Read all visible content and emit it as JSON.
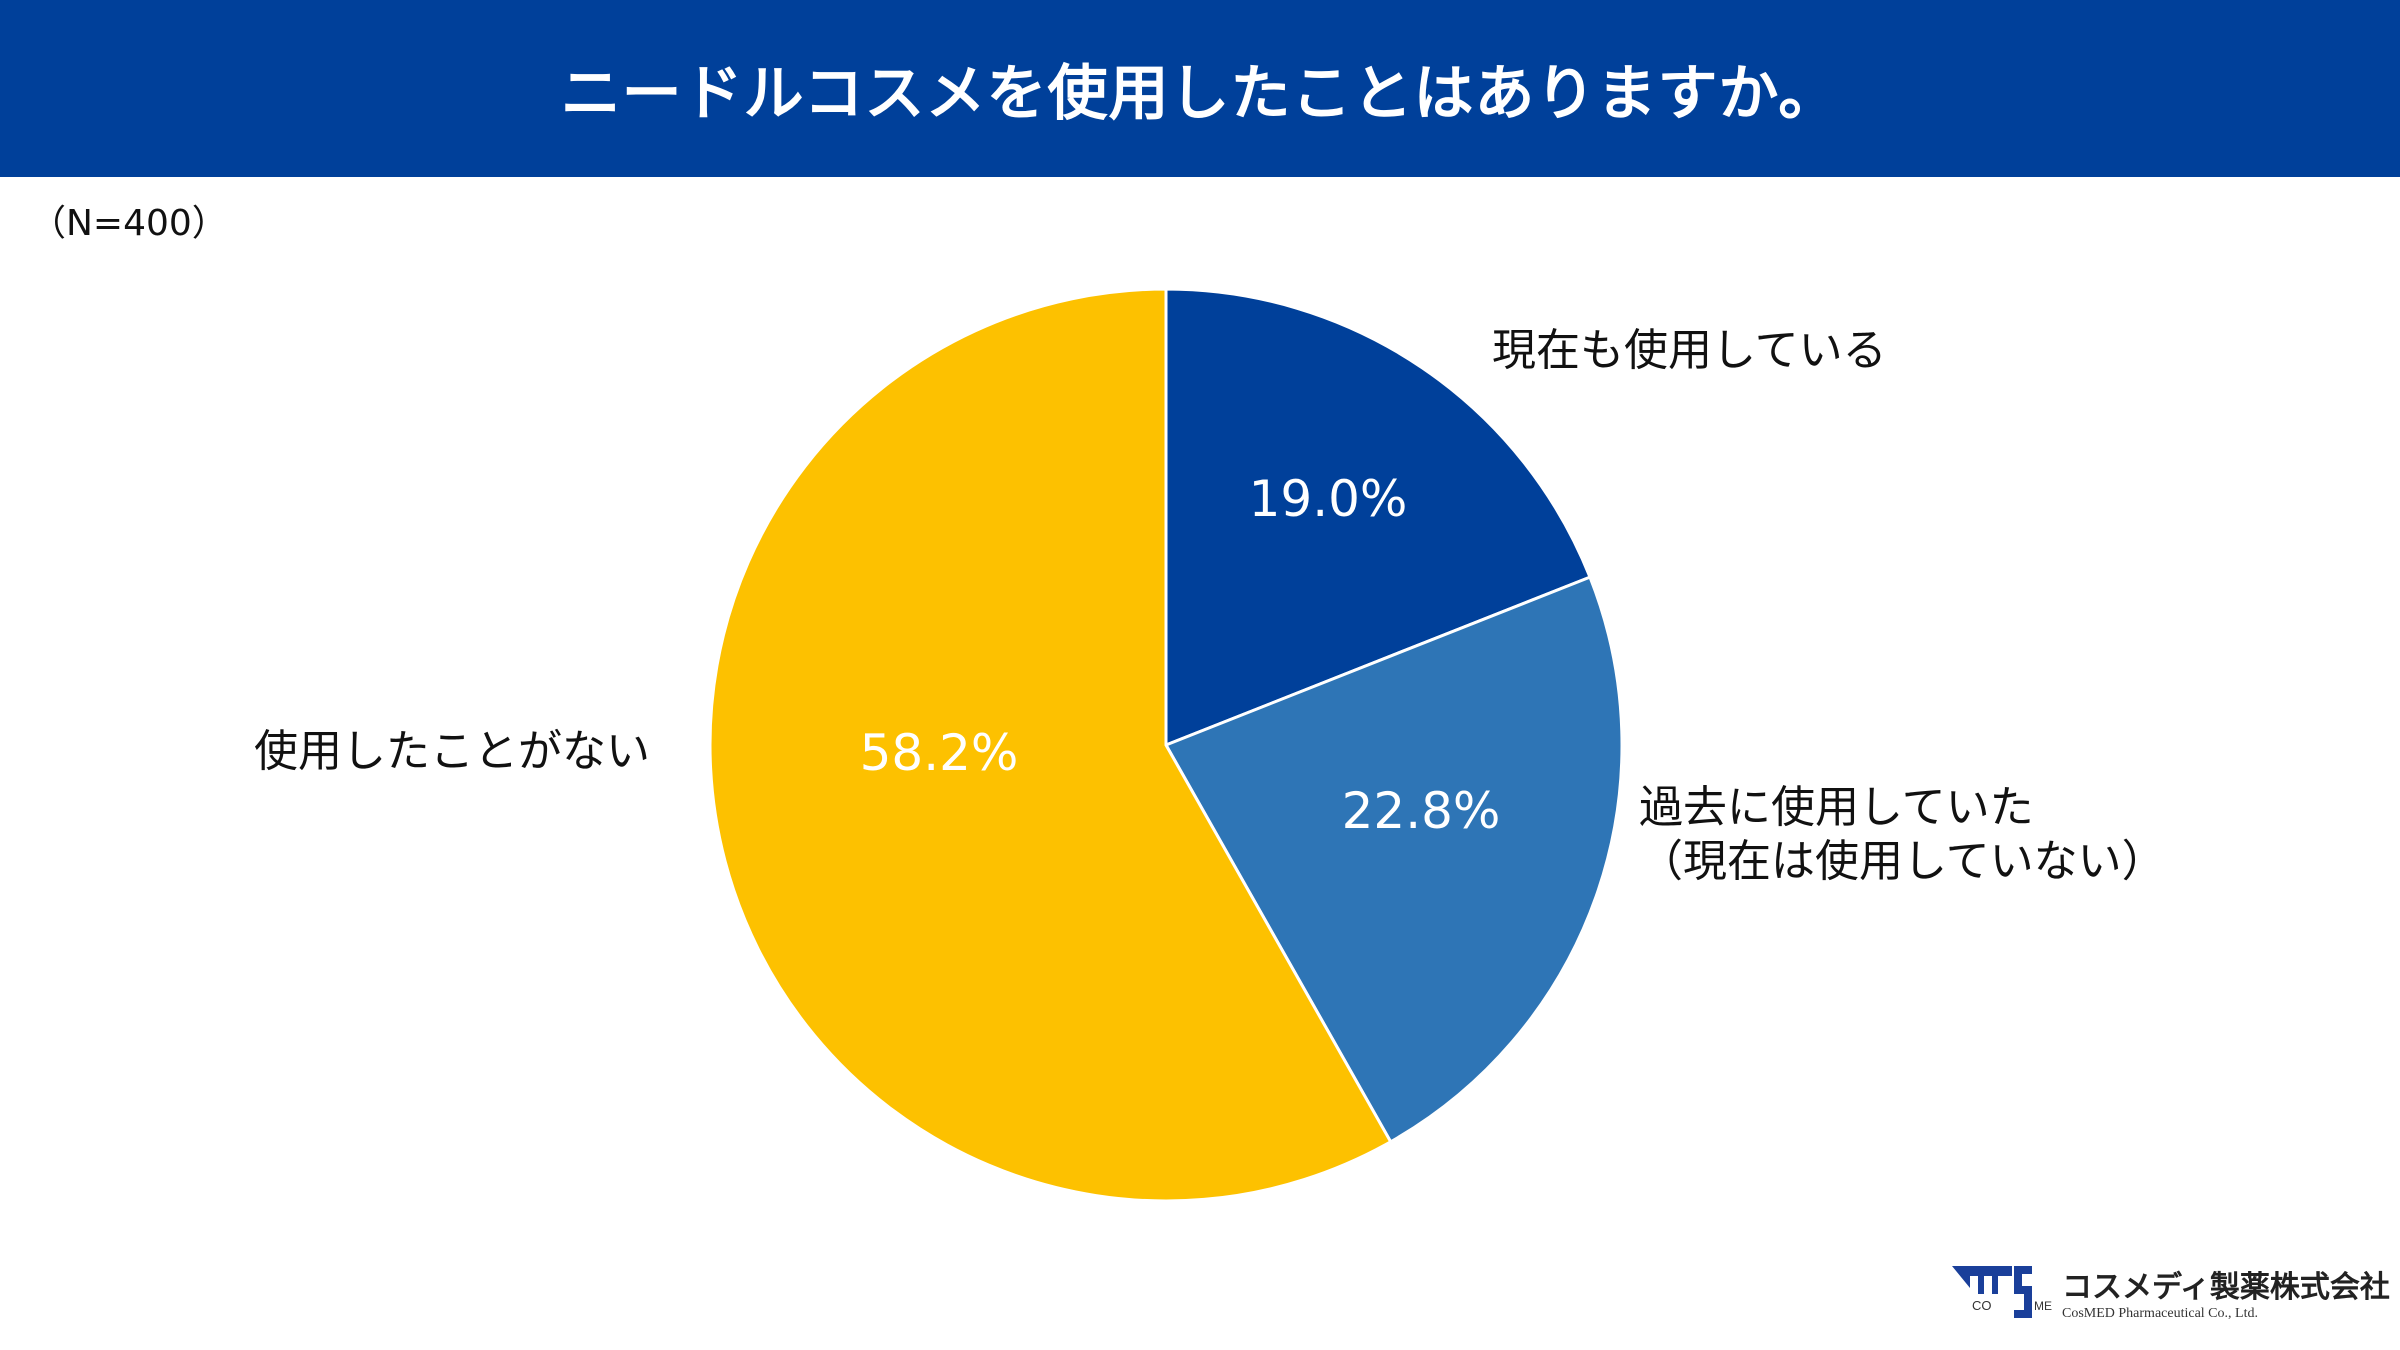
{
  "header": {
    "title": "ニードルコスメを使用したことはありますか。"
  },
  "sample_note": "（N=400）",
  "chart_data": {
    "type": "pie",
    "title": "ニードルコスメを使用したことはありますか。",
    "categories": [
      "現在も使用している",
      "過去に使用していた（現在は使用していない）",
      "使用したことがない"
    ],
    "label_lines": [
      [
        "現在も使用している"
      ],
      [
        "過去に使用していた",
        "（現在は使用していない）"
      ],
      [
        "使用したことがない"
      ]
    ],
    "values": [
      19.0,
      22.8,
      58.2
    ],
    "value_labels": [
      "19.0%",
      "22.8%",
      "58.2%"
    ],
    "colors": [
      "#00409a",
      "#2e75b6",
      "#fdc100"
    ],
    "start": "top",
    "direction": "clockwise"
  },
  "logo": {
    "jp": "コスメディ製薬株式会社",
    "en": "CosMED Pharmaceutical Co., Ltd.",
    "mark": "COSMED"
  }
}
